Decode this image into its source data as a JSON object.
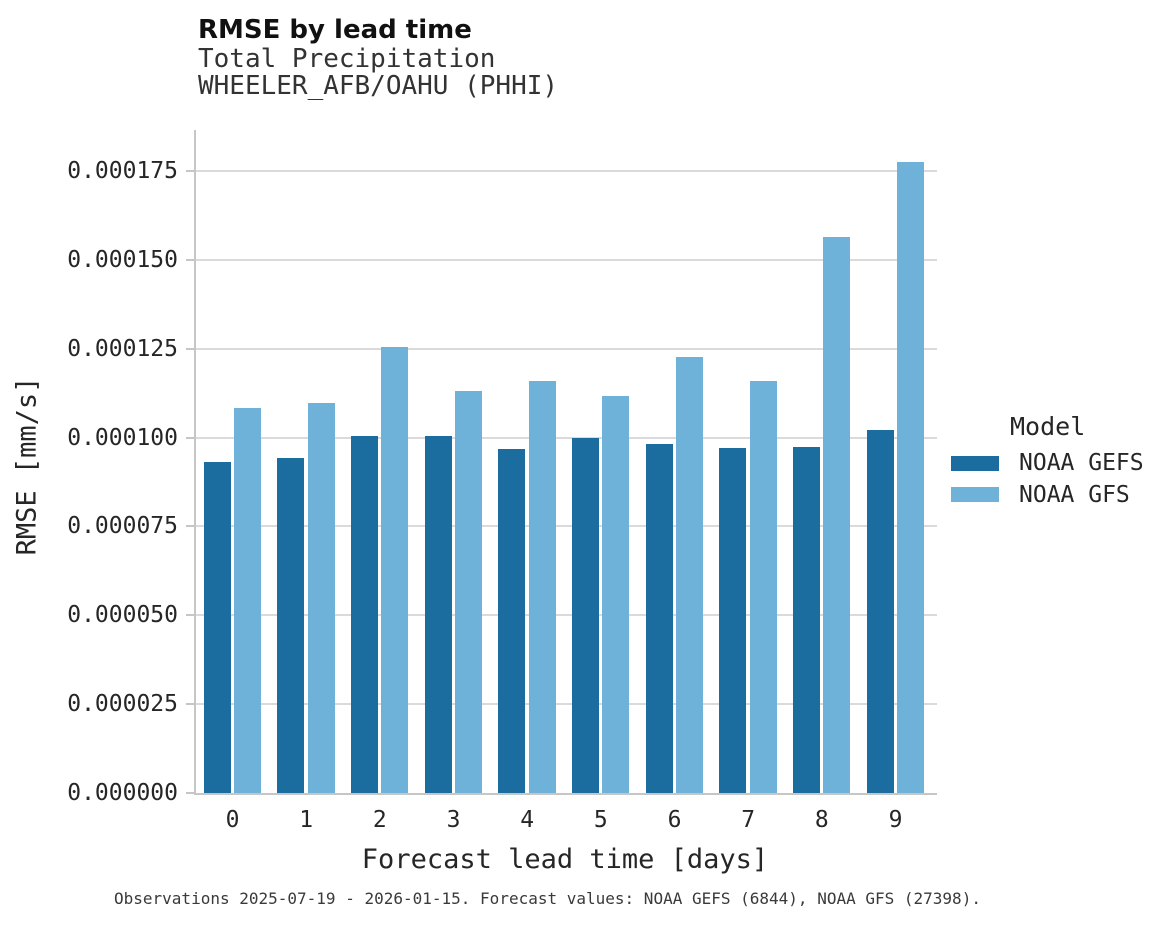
{
  "figure": {
    "title": "RMSE by lead time",
    "subtitle_line1": "Total Precipitation",
    "subtitle_line2": "WHEELER_AFB/OAHU (PHHI)",
    "caption": "Observations 2025-07-19 - 2026-01-15. Forecast values: NOAA GEFS (6844), NOAA GFS (27398)."
  },
  "legend": {
    "title": "Model",
    "items": [
      {
        "label": "NOAA GEFS",
        "color": "#1a6d9e"
      },
      {
        "label": "NOAA GFS",
        "color": "#6fb2d9"
      }
    ]
  },
  "chart_data": {
    "type": "bar",
    "grouped": true,
    "title": "RMSE by lead time",
    "subtitle": [
      "Total Precipitation",
      "WHEELER_AFB/OAHU (PHHI)"
    ],
    "xlabel": "Forecast lead time [days]",
    "ylabel": "RMSE [mm/s]",
    "categories": [
      "0",
      "1",
      "2",
      "3",
      "4",
      "5",
      "6",
      "7",
      "8",
      "9"
    ],
    "series": [
      {
        "name": "NOAA GEFS",
        "color": "#1a6d9e",
        "values": [
          9.3e-05,
          9.43e-05,
          0.0001004,
          0.0001004,
          9.68e-05,
          0.0001,
          9.81e-05,
          9.72e-05,
          9.74e-05,
          0.0001021
        ]
      },
      {
        "name": "NOAA GFS",
        "color": "#6fb2d9",
        "values": [
          0.0001082,
          0.0001096,
          0.0001255,
          0.0001131,
          0.0001159,
          0.0001117,
          0.0001226,
          0.0001159,
          0.0001563,
          0.0001774
        ]
      }
    ],
    "ylim": [
      0,
      0.000186
    ],
    "yticks": [
      0,
      2.5e-05,
      5e-05,
      7.5e-05,
      0.0001,
      0.000125,
      0.00015,
      0.000175
    ],
    "ytick_labels": [
      "0.000000",
      "0.000025",
      "0.000050",
      "0.000075",
      "0.000100",
      "0.000125",
      "0.000150",
      "0.000175"
    ],
    "grid": "horizontal",
    "legend_title": "Model",
    "legend_position": "right",
    "caption": "Observations 2025-07-19 - 2026-01-15. Forecast values: NOAA GEFS (6844), NOAA GFS (27398)."
  }
}
